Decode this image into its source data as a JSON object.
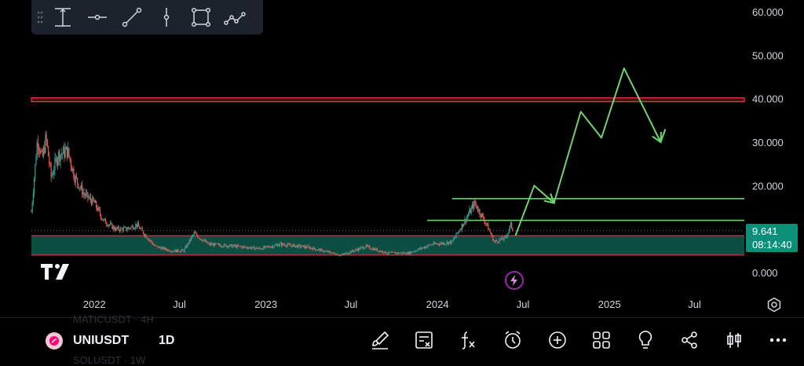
{
  "toolbar": {
    "tools": [
      "drag-handle-icon",
      "measure-icon",
      "horizontal-line-icon",
      "trend-line-icon",
      "vertical-line-icon",
      "rectangle-icon",
      "path-icon"
    ]
  },
  "chart_data": {
    "type": "line",
    "symbol": "UNIUSDT",
    "interval": "1D",
    "x_ticks": [
      "2022",
      "Jul",
      "2023",
      "Jul",
      "2024",
      "Jul",
      "2025",
      "Jul"
    ],
    "x_tick_dates": [
      "2022-01-01",
      "2022-07-01",
      "2023-01-01",
      "2023-07-01",
      "2024-01-01",
      "2024-07-01",
      "2025-01-01",
      "2025-07-01"
    ],
    "y_ticks": [
      "60.000",
      "50.000",
      "40.000",
      "30.000",
      "20.000",
      "0.000"
    ],
    "y_tick_values": [
      60,
      50,
      40,
      30,
      20,
      0
    ],
    "ylim": [
      0,
      62
    ],
    "xlim": [
      "2021-08-20",
      "2025-10-15"
    ],
    "price_path": [
      [
        "2021-08-20",
        14
      ],
      [
        "2021-09-02",
        31
      ],
      [
        "2021-09-12",
        26
      ],
      [
        "2021-09-20",
        31
      ],
      [
        "2021-10-01",
        22
      ],
      [
        "2021-10-15",
        27
      ],
      [
        "2021-11-05",
        28
      ],
      [
        "2021-11-20",
        22
      ],
      [
        "2021-12-10",
        18
      ],
      [
        "2022-01-01",
        16
      ],
      [
        "2022-01-20",
        12
      ],
      [
        "2022-02-15",
        10
      ],
      [
        "2022-03-10",
        10
      ],
      [
        "2022-04-01",
        11
      ],
      [
        "2022-05-10",
        6
      ],
      [
        "2022-06-15",
        5
      ],
      [
        "2022-07-10",
        5
      ],
      [
        "2022-08-01",
        9
      ],
      [
        "2022-09-01",
        6.5
      ],
      [
        "2022-11-01",
        6
      ],
      [
        "2022-12-20",
        5.5
      ],
      [
        "2023-02-01",
        6.5
      ],
      [
        "2023-04-01",
        5.8
      ],
      [
        "2023-06-10",
        4
      ],
      [
        "2023-08-01",
        6
      ],
      [
        "2023-09-15",
        4.5
      ],
      [
        "2023-11-01",
        4.5
      ],
      [
        "2023-12-20",
        6.5
      ],
      [
        "2024-02-01",
        7
      ],
      [
        "2024-03-05",
        13
      ],
      [
        "2024-03-20",
        16
      ],
      [
        "2024-04-15",
        11
      ],
      [
        "2024-05-01",
        7
      ],
      [
        "2024-05-25",
        8
      ],
      [
        "2024-06-05",
        11
      ],
      [
        "2024-06-10",
        9.6
      ]
    ],
    "current_price": "9.641",
    "countdown": "08:14:40",
    "resistance_band": [
      39.3,
      40.2
    ],
    "support_zone": [
      4.0,
      8.5
    ],
    "green_levels": [
      {
        "value": 17,
        "from": "2024-02-01"
      },
      {
        "value": 12,
        "from": "2023-12-10"
      }
    ],
    "projection": [
      [
        "2024-06-15",
        8.5
      ],
      [
        "2024-07-25",
        20
      ],
      [
        "2024-09-05",
        16
      ],
      [
        "2024-11-01",
        37
      ],
      [
        "2024-12-15",
        31
      ],
      [
        "2025-02-01",
        47
      ],
      [
        "2025-04-20",
        30
      ],
      [
        "2025-04-30",
        33
      ]
    ],
    "colors": {
      "bull": "#26a69a",
      "bear": "#ef5350",
      "resistance": "#f23645",
      "support": "#0f5c4d",
      "projection": "#6fd36f",
      "badge": "#0b8f78"
    }
  },
  "bottom_bar": {
    "symbol": "UNIUSDT",
    "interval": "1D",
    "ghost_top": "MATICUSDT · 4H",
    "ghost_bottom": "SOLUSDT · 1W",
    "icons": [
      "brush-icon",
      "indicators-list-icon",
      "fx-icon",
      "alert-clock-icon",
      "add-icon",
      "layout-grid-icon",
      "ideas-bulb-icon",
      "share-icon",
      "candles-icon",
      "more-icon"
    ]
  }
}
